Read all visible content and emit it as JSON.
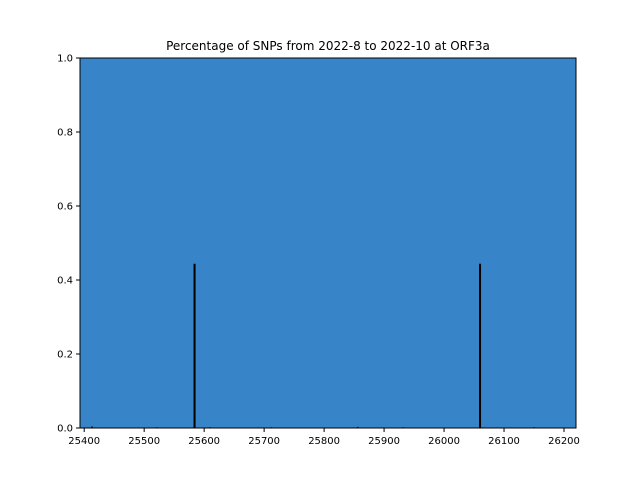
{
  "chart_data": {
    "type": "bar",
    "title": "Percentage of SNPs from 2022-8 to 2022-10 at ORF3a",
    "xlabel": "",
    "ylabel": "",
    "xlim": [
      25393,
      26220
    ],
    "ylim": [
      0,
      1.0
    ],
    "x_ticks": [
      25400,
      25500,
      25600,
      25700,
      25800,
      25900,
      26000,
      26100,
      26200
    ],
    "y_ticks": [
      0.0,
      0.2,
      0.4,
      0.6,
      0.8,
      1.0
    ],
    "y_tick_labels": [
      "0.0",
      "0.2",
      "0.4",
      "0.6",
      "0.8",
      "1.0"
    ],
    "grid": false,
    "background_color": "#3784c8",
    "bar_color": "#000000",
    "series": [
      {
        "x": [
          25413,
          25521,
          25584,
          25610,
          25712,
          25856,
          25932,
          26060,
          26150
        ],
        "values": [
          0.004,
          0.002,
          0.444,
          0.002,
          0.002,
          0.003,
          0.002,
          0.444,
          0.002
        ]
      }
    ]
  }
}
